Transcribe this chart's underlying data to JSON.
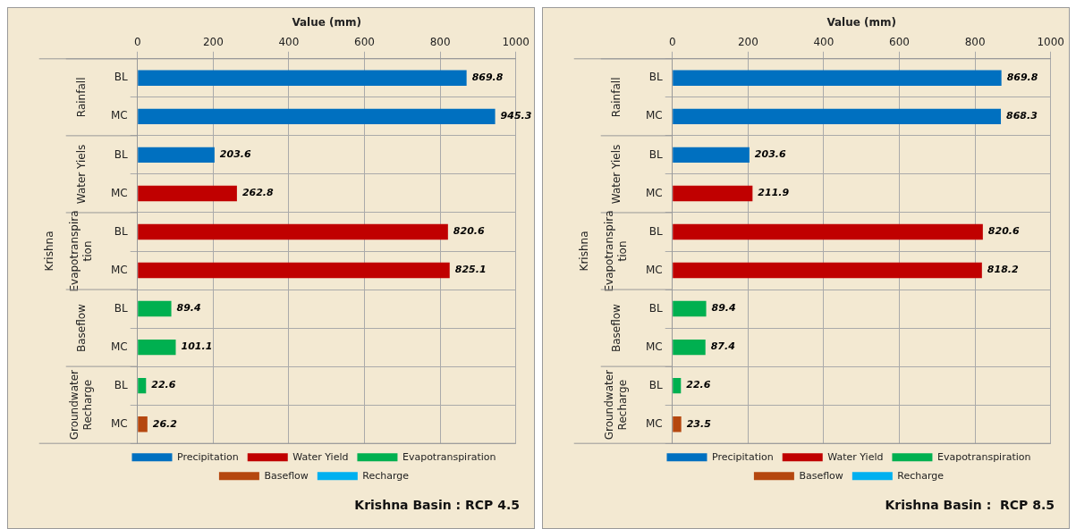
{
  "chart_data": [
    {
      "type": "bar",
      "orientation": "horizontal",
      "title": "Krishna Basin : RCP 4.5",
      "xlabel": "Value (mm)",
      "categories": [
        "BL",
        "MC",
        "BL",
        "MC",
        "BL",
        "MC",
        "BL",
        "MC",
        "BL",
        "MC"
      ],
      "annotations": [
        "Krishna",
        "Rainfall",
        "Water Yiels",
        "Evapotranspira\ntion",
        "Baseflow",
        "Groundwater\nRecharge"
      ],
      "series": [
        {
          "name": "Precipitation",
          "color": "#0070c0",
          "values": [
            869.8,
            945.3,
            203.6,
            null,
            null,
            null,
            null,
            null,
            null,
            null
          ]
        },
        {
          "name": "Water Yield",
          "color": "#c00000",
          "values": [
            null,
            null,
            null,
            262.8,
            820.6,
            825.1,
            null,
            null,
            null,
            null
          ]
        },
        {
          "name": "Evapotranspiration",
          "color": "#00b050",
          "values": [
            null,
            null,
            null,
            null,
            null,
            null,
            89.4,
            101.1,
            22.6,
            null
          ]
        },
        {
          "name": "Baseflow",
          "color": "#b5470f",
          "values": [
            null,
            null,
            null,
            null,
            null,
            null,
            null,
            null,
            null,
            26.2
          ]
        },
        {
          "name": "Recharge",
          "color": "#00b0f0",
          "values": [
            null,
            null,
            null,
            null,
            null,
            null,
            null,
            null,
            null,
            null
          ]
        }
      ],
      "xlim": [
        0,
        1000
      ],
      "xticks": [
        0,
        200,
        400,
        600,
        800,
        1000
      ],
      "grid": true,
      "legend": "bottom",
      "data_labels": true
    },
    {
      "type": "bar",
      "orientation": "horizontal",
      "title": "Krishna Basin :  RCP 8.5",
      "xlabel": "Value (mm)",
      "categories": [
        "BL",
        "MC",
        "BL",
        "MC",
        "BL",
        "MC",
        "BL",
        "MC",
        "BL",
        "MC"
      ],
      "annotations": [
        "Krishna",
        "Rainfall",
        "Water Yiels",
        "Evapotranspira\ntion",
        "Baseflow",
        "Groundwater\nRecharge"
      ],
      "series": [
        {
          "name": "Precipitation",
          "color": "#0070c0",
          "values": [
            869.8,
            868.3,
            203.6,
            null,
            null,
            null,
            null,
            null,
            null,
            null
          ]
        },
        {
          "name": "Water Yield",
          "color": "#c00000",
          "values": [
            null,
            null,
            null,
            211.9,
            820.6,
            818.2,
            null,
            null,
            null,
            null
          ]
        },
        {
          "name": "Evapotranspiration",
          "color": "#00b050",
          "values": [
            null,
            null,
            null,
            null,
            null,
            null,
            89.4,
            87.4,
            22.6,
            null
          ]
        },
        {
          "name": "Baseflow",
          "color": "#b5470f",
          "values": [
            null,
            null,
            null,
            null,
            null,
            null,
            null,
            null,
            null,
            23.5
          ]
        },
        {
          "name": "Recharge",
          "color": "#00b0f0",
          "values": [
            null,
            null,
            null,
            null,
            null,
            null,
            null,
            null,
            null,
            null
          ]
        }
      ],
      "xlim": [
        0,
        1000
      ],
      "xticks": [
        0,
        200,
        400,
        600,
        800,
        1000
      ],
      "grid": true,
      "legend": "bottom",
      "data_labels": true
    }
  ]
}
